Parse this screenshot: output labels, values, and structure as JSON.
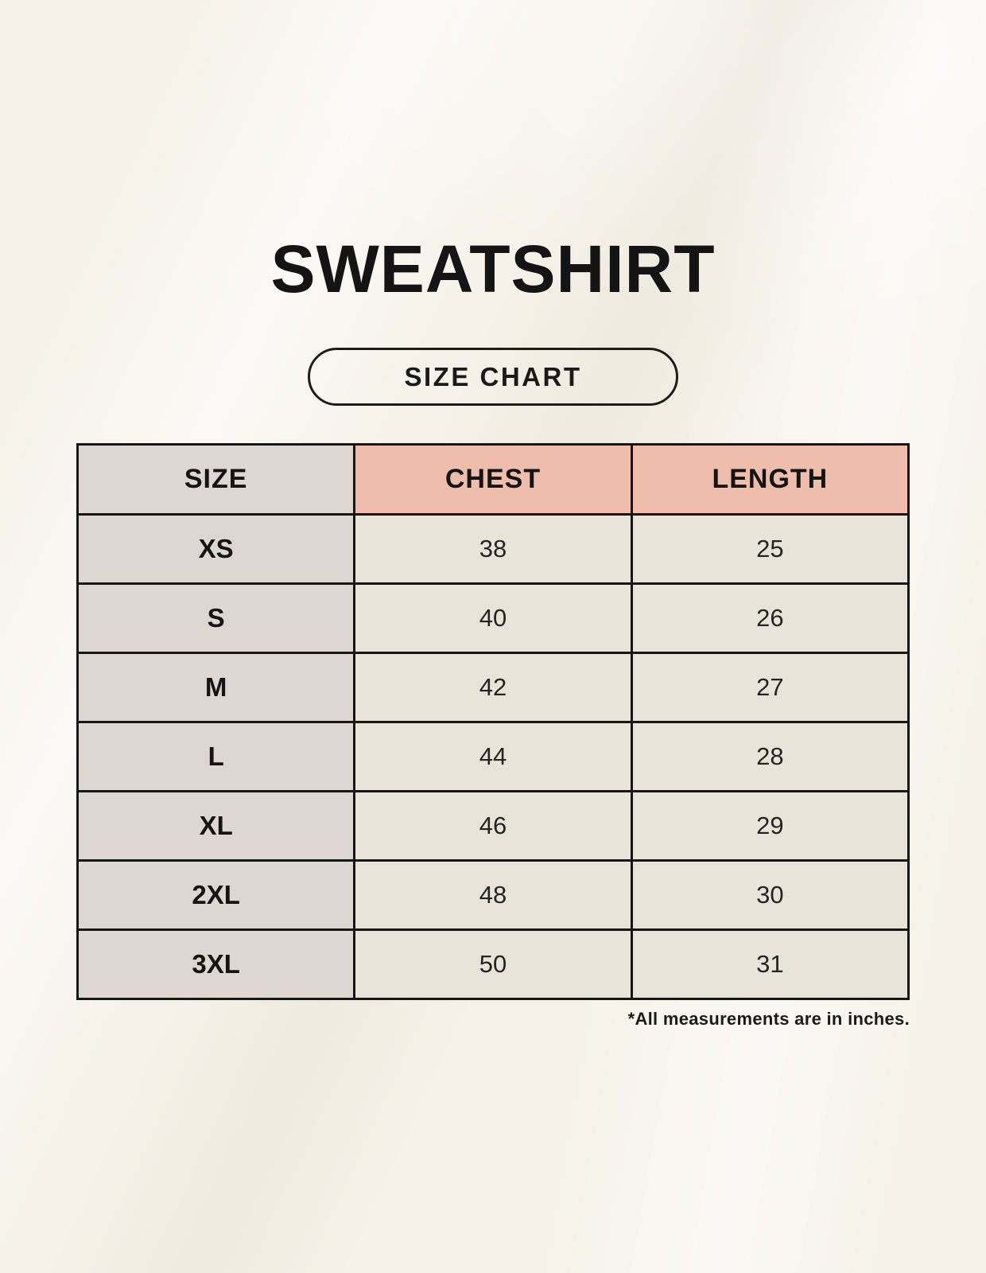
{
  "page": {
    "title": "SWEATSHIRT",
    "badge_label": "SIZE CHART",
    "footnote": "*All measurements are in inches."
  },
  "colors": {
    "background": "#f6f2e9",
    "size_column_bg": "#ddd6d1",
    "accent_header_bg": "#efbdab",
    "data_cell_bg": "#e9e4da",
    "border": "#161616",
    "text": "#161616"
  },
  "chart_data": {
    "type": "table",
    "title": "SWEATSHIRT",
    "columns": [
      "SIZE",
      "CHEST",
      "LENGTH"
    ],
    "rows": [
      {
        "size": "XS",
        "chest": "38",
        "length": "25"
      },
      {
        "size": "S",
        "chest": "40",
        "length": "26"
      },
      {
        "size": "M",
        "chest": "42",
        "length": "27"
      },
      {
        "size": "L",
        "chest": "44",
        "length": "28"
      },
      {
        "size": "XL",
        "chest": "46",
        "length": "29"
      },
      {
        "size": "2XL",
        "chest": "48",
        "length": "30"
      },
      {
        "size": "3XL",
        "chest": "50",
        "length": "31"
      }
    ],
    "units": "inches"
  }
}
